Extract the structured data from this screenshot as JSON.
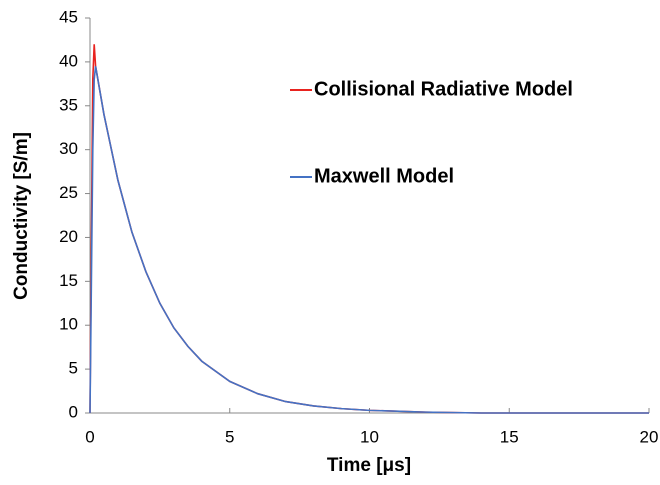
{
  "chart_data": {
    "type": "line",
    "x_label": "Time [μs]",
    "y_label": "Conductivity [S/m]",
    "x": [
      0,
      0.05,
      0.1,
      0.15,
      0.2,
      0.5,
      1,
      1.5,
      2,
      2.5,
      3,
      3.5,
      4,
      5,
      6,
      7,
      8,
      9,
      10,
      12,
      14,
      16,
      18,
      20
    ],
    "series": [
      {
        "name": "Collisional Radiative Model",
        "color": "#e8231f",
        "values": [
          0,
          20,
          38,
          42,
          39.5,
          34.0,
          26.5,
          20.6,
          16.1,
          12.5,
          9.7,
          7.6,
          5.9,
          3.6,
          2.2,
          1.3,
          0.8,
          0.5,
          0.3,
          0.1,
          0,
          0,
          0,
          0
        ]
      },
      {
        "name": "Maxwell Model",
        "color": "#4472c4",
        "values": [
          0,
          15,
          30,
          38,
          39.5,
          34.0,
          26.5,
          20.6,
          16.1,
          12.5,
          9.7,
          7.6,
          5.9,
          3.6,
          2.2,
          1.3,
          0.8,
          0.5,
          0.3,
          0.1,
          0,
          0,
          0,
          0
        ]
      }
    ],
    "xlim": [
      0,
      20
    ],
    "xticks": [
      0,
      5,
      10,
      15,
      20
    ],
    "ylim": [
      0,
      45
    ],
    "yticks": [
      0,
      5,
      10,
      15,
      20,
      25,
      30,
      35,
      40,
      45
    ]
  }
}
